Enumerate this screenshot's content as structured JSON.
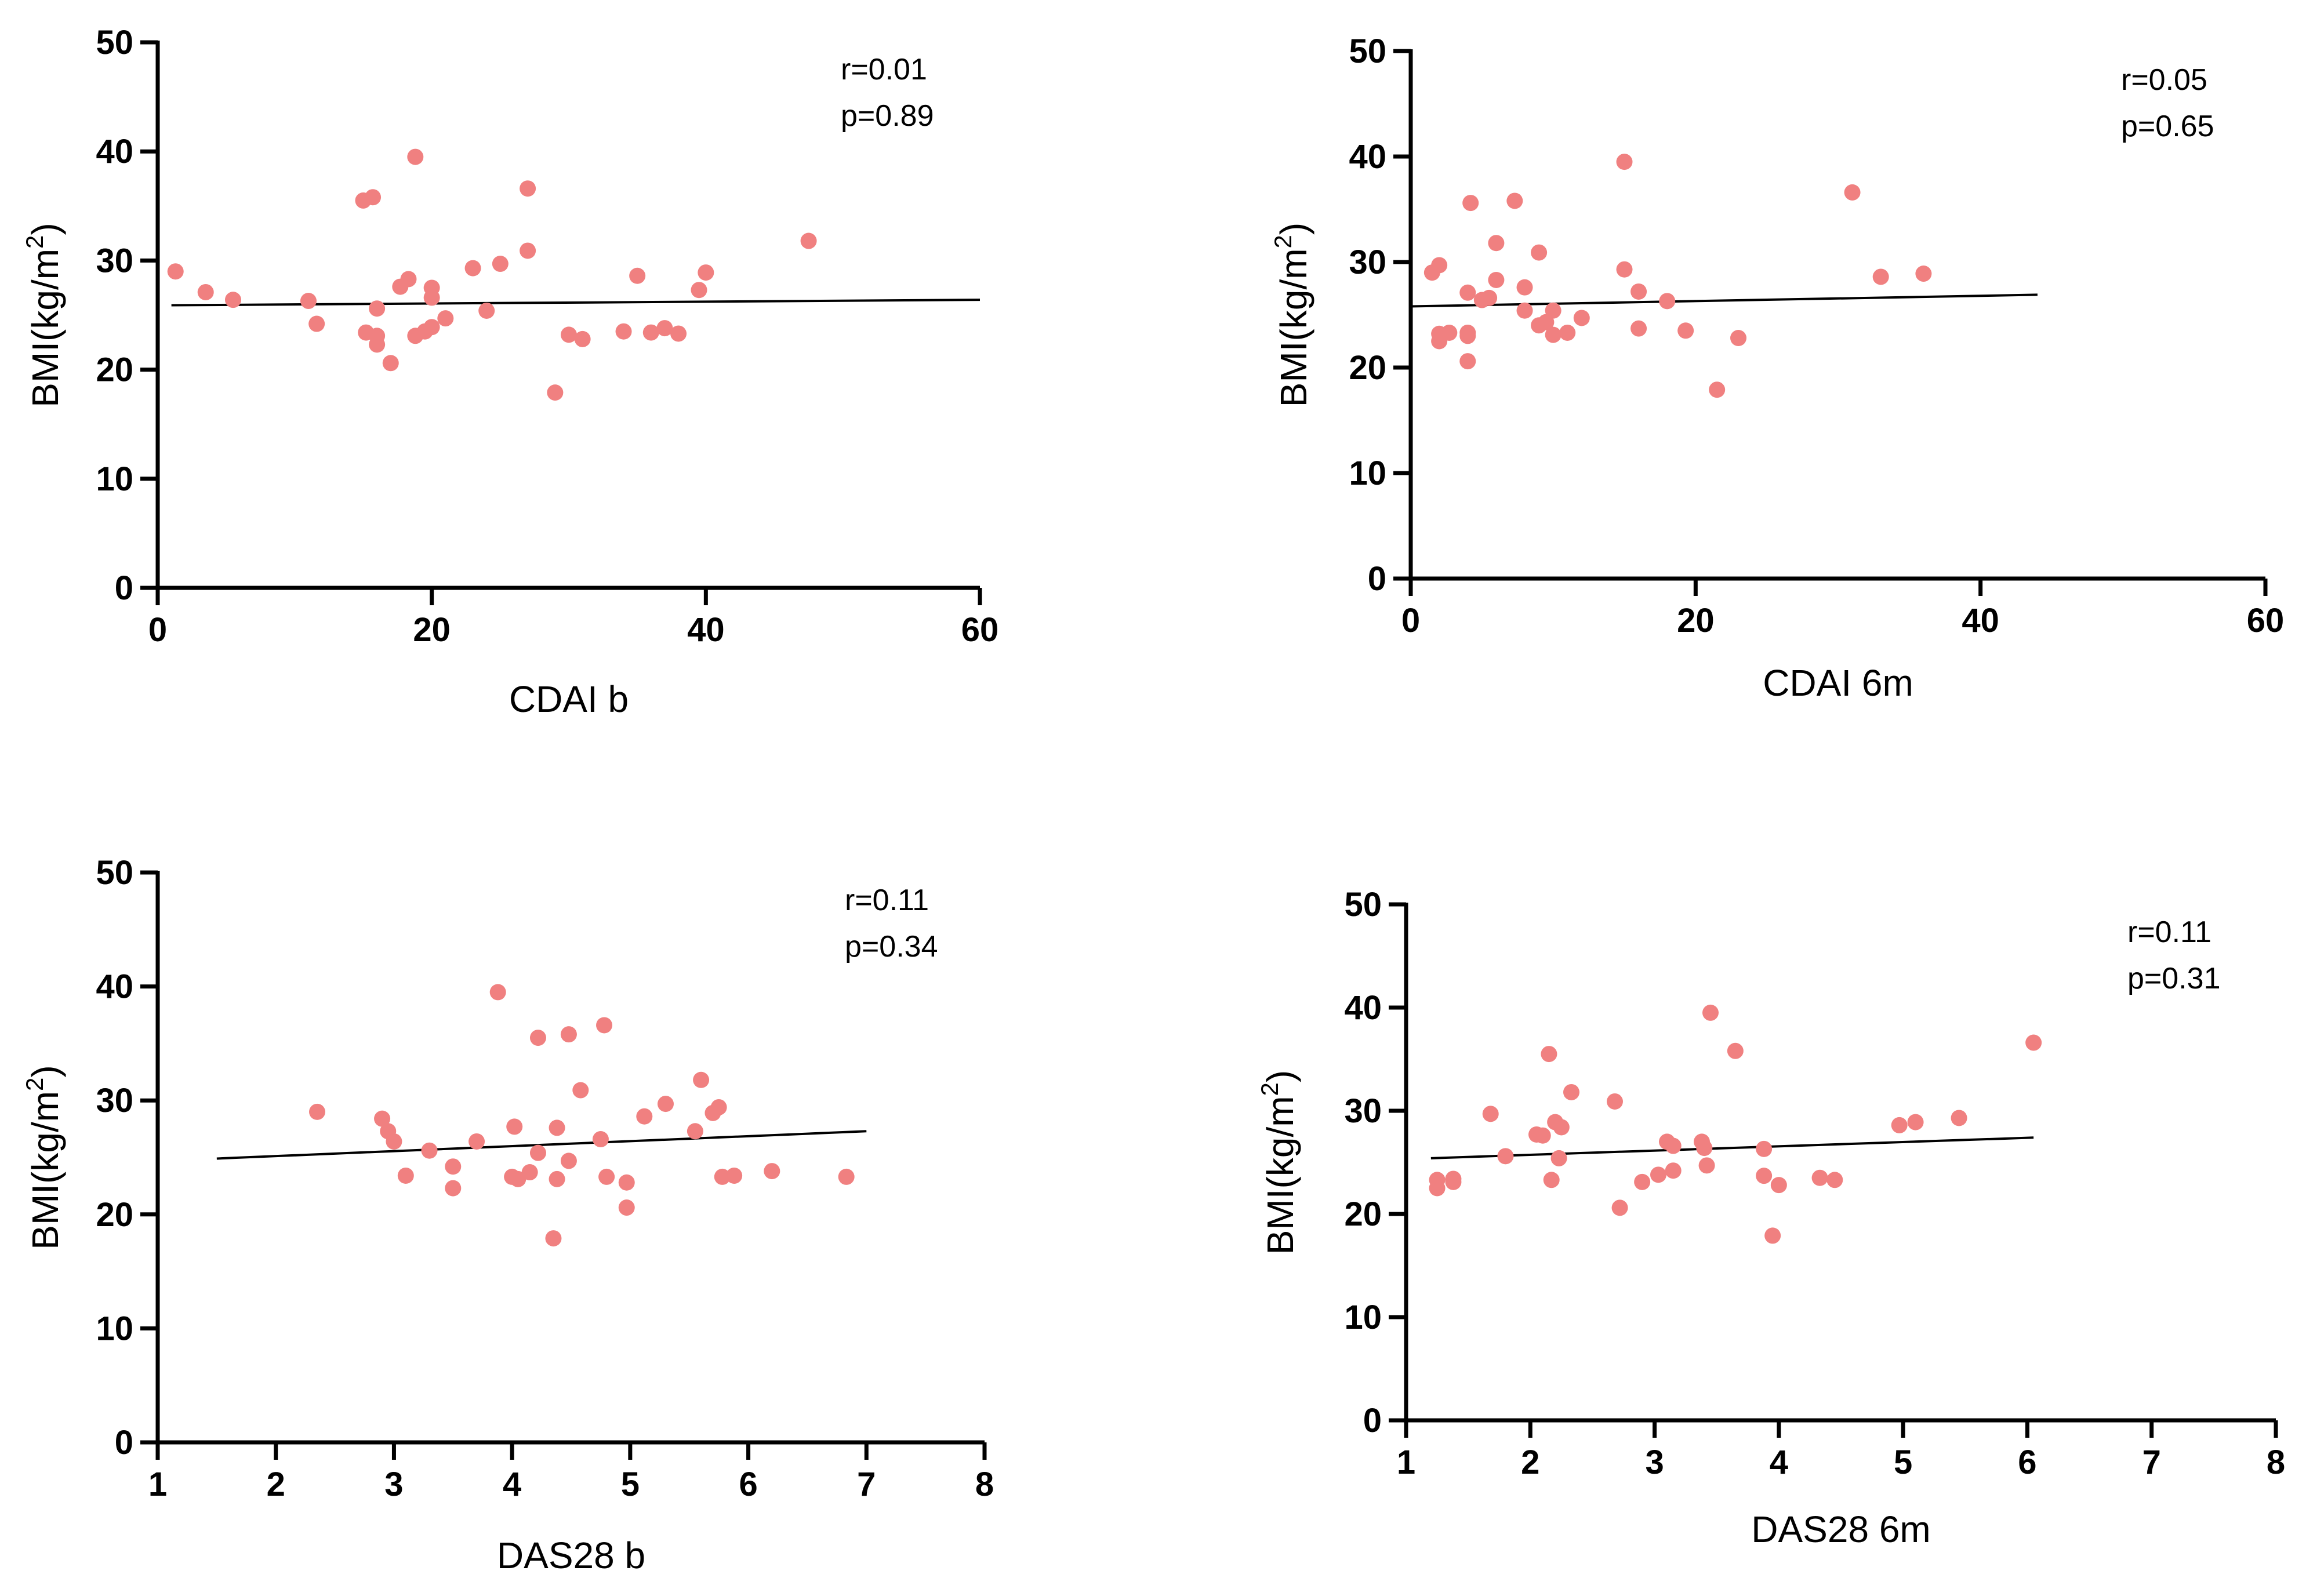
{
  "colors": {
    "point": "#f08080",
    "axis": "#000000",
    "fit_line": "#000000"
  },
  "chart_data": [
    {
      "type": "scatter",
      "panel": "top-left",
      "xlabel": "CDAI b",
      "ylabel_main": "BMI(kg/m",
      "ylabel_sup": "2",
      "ylabel_close": ")",
      "xlim": [
        0,
        60
      ],
      "ylim": [
        0,
        50
      ],
      "xticks": [
        0,
        20,
        40,
        60
      ],
      "yticks": [
        0,
        10,
        20,
        30,
        40,
        50
      ],
      "annotations": [
        "r=0.01",
        "p=0.89"
      ],
      "fit_line": {
        "x": [
          1,
          60
        ],
        "y": [
          25.9,
          26.4
        ]
      },
      "points": [
        [
          1.3,
          29.0
        ],
        [
          3.5,
          27.1
        ],
        [
          5.5,
          26.4
        ],
        [
          11,
          26.3
        ],
        [
          11.6,
          24.2
        ],
        [
          15,
          35.5
        ],
        [
          15.7,
          35.8
        ],
        [
          15.2,
          23.4
        ],
        [
          16,
          25.6
        ],
        [
          16,
          23.1
        ],
        [
          16,
          22.3
        ],
        [
          17,
          20.6
        ],
        [
          17.7,
          27.6
        ],
        [
          18.3,
          28.3
        ],
        [
          18.8,
          39.5
        ],
        [
          18.8,
          23.1
        ],
        [
          19.5,
          23.5
        ],
        [
          20,
          27.5
        ],
        [
          20,
          26.6
        ],
        [
          20,
          23.9
        ],
        [
          21,
          24.7
        ],
        [
          23,
          29.3
        ],
        [
          24,
          25.4
        ],
        [
          25,
          29.7
        ],
        [
          27,
          36.6
        ],
        [
          27,
          30.9
        ],
        [
          29,
          17.9
        ],
        [
          30,
          23.2
        ],
        [
          31,
          22.8
        ],
        [
          34,
          23.5
        ],
        [
          35,
          28.6
        ],
        [
          36,
          23.4
        ],
        [
          37,
          23.8
        ],
        [
          38,
          23.3
        ],
        [
          39.5,
          27.3
        ],
        [
          40,
          28.9
        ],
        [
          47.5,
          31.8
        ]
      ]
    },
    {
      "type": "scatter",
      "panel": "top-right",
      "xlabel": "CDAI 6m",
      "ylabel_main": "BMI(kg/m",
      "ylabel_sup": "2",
      "ylabel_close": ")",
      "xlim": [
        0,
        60
      ],
      "ylim": [
        0,
        50
      ],
      "xticks": [
        0,
        20,
        40,
        60
      ],
      "yticks": [
        0,
        10,
        20,
        30,
        40,
        50
      ],
      "annotations": [
        "r=0.05",
        "p=0.65"
      ],
      "fit_line": {
        "x": [
          0,
          44
        ],
        "y": [
          25.8,
          26.9
        ]
      },
      "points": [
        [
          1.5,
          29.0
        ],
        [
          2,
          29.7
        ],
        [
          2,
          23.2
        ],
        [
          2,
          22.5
        ],
        [
          2.7,
          23.3
        ],
        [
          4,
          27.1
        ],
        [
          4,
          23.3
        ],
        [
          4,
          23.0
        ],
        [
          4,
          20.6
        ],
        [
          4.2,
          35.6
        ],
        [
          5,
          26.4
        ],
        [
          5.5,
          26.6
        ],
        [
          6,
          31.8
        ],
        [
          6,
          28.3
        ],
        [
          7.3,
          35.8
        ],
        [
          8,
          27.6
        ],
        [
          8,
          25.4
        ],
        [
          9,
          30.9
        ],
        [
          9,
          24.0
        ],
        [
          9.5,
          24.3
        ],
        [
          10,
          25.4
        ],
        [
          10,
          23.1
        ],
        [
          11,
          23.3
        ],
        [
          12,
          24.7
        ],
        [
          15,
          39.5
        ],
        [
          15,
          29.3
        ],
        [
          16,
          27.2
        ],
        [
          16,
          23.7
        ],
        [
          18,
          26.3
        ],
        [
          19.3,
          23.5
        ],
        [
          21.5,
          17.9
        ],
        [
          23,
          22.8
        ],
        [
          31,
          36.6
        ],
        [
          33,
          28.6
        ],
        [
          36,
          28.9
        ]
      ]
    },
    {
      "type": "scatter",
      "panel": "bottom-left",
      "xlabel": "DAS28 b",
      "ylabel_main": "BMI(kg/m",
      "ylabel_sup": "2",
      "ylabel_close": ")",
      "xlim": [
        1,
        8
      ],
      "ylim": [
        0,
        50
      ],
      "xticks": [
        1,
        2,
        3,
        4,
        5,
        6,
        7,
        8
      ],
      "yticks": [
        0,
        10,
        20,
        30,
        40,
        50
      ],
      "annotations": [
        "r=0.11",
        "p=0.34"
      ],
      "fit_line": {
        "x": [
          1.5,
          7
        ],
        "y": [
          24.9,
          27.3
        ]
      },
      "points": [
        [
          2.35,
          29.0
        ],
        [
          2.9,
          28.4
        ],
        [
          2.95,
          27.3
        ],
        [
          3.0,
          26.4
        ],
        [
          3.1,
          23.4
        ],
        [
          3.3,
          25.6
        ],
        [
          3.5,
          24.2
        ],
        [
          3.5,
          22.3
        ],
        [
          3.7,
          26.4
        ],
        [
          3.88,
          39.5
        ],
        [
          4.0,
          23.3
        ],
        [
          4.02,
          27.7
        ],
        [
          4.05,
          23.1
        ],
        [
          4.15,
          23.7
        ],
        [
          4.22,
          35.5
        ],
        [
          4.22,
          25.4
        ],
        [
          4.35,
          17.9
        ],
        [
          4.38,
          27.6
        ],
        [
          4.38,
          23.1
        ],
        [
          4.48,
          35.8
        ],
        [
          4.48,
          24.7
        ],
        [
          4.58,
          30.9
        ],
        [
          4.75,
          26.6
        ],
        [
          4.78,
          36.6
        ],
        [
          4.8,
          23.3
        ],
        [
          4.97,
          22.8
        ],
        [
          4.97,
          20.6
        ],
        [
          5.12,
          28.6
        ],
        [
          5.3,
          29.7
        ],
        [
          5.55,
          27.3
        ],
        [
          5.6,
          31.8
        ],
        [
          5.7,
          28.9
        ],
        [
          5.75,
          29.4
        ],
        [
          5.78,
          23.3
        ],
        [
          5.88,
          23.4
        ],
        [
          6.2,
          23.8
        ],
        [
          6.83,
          23.3
        ]
      ]
    },
    {
      "type": "scatter",
      "panel": "bottom-right",
      "xlabel": "DAS28 6m",
      "ylabel_main": "BMI(kg/m",
      "ylabel_sup": "2",
      "ylabel_close": ")",
      "xlim": [
        1,
        8
      ],
      "ylim": [
        0,
        50
      ],
      "xticks": [
        1,
        2,
        3,
        4,
        5,
        6,
        7,
        8
      ],
      "yticks": [
        0,
        10,
        20,
        30,
        40,
        50
      ],
      "annotations": [
        "r=0.11",
        "p=0.31"
      ],
      "fit_line": {
        "x": [
          1.2,
          6.05
        ],
        "y": [
          25.4,
          27.4
        ]
      },
      "points": [
        [
          1.25,
          23.3
        ],
        [
          1.25,
          22.5
        ],
        [
          1.38,
          23.4
        ],
        [
          1.38,
          23.1
        ],
        [
          1.68,
          29.7
        ],
        [
          1.8,
          25.6
        ],
        [
          2.05,
          27.7
        ],
        [
          2.1,
          27.6
        ],
        [
          2.15,
          35.5
        ],
        [
          2.17,
          23.3
        ],
        [
          2.2,
          28.9
        ],
        [
          2.23,
          25.4
        ],
        [
          2.25,
          28.4
        ],
        [
          2.33,
          31.8
        ],
        [
          2.68,
          30.9
        ],
        [
          2.72,
          20.6
        ],
        [
          2.9,
          23.1
        ],
        [
          3.03,
          23.8
        ],
        [
          3.1,
          27.0
        ],
        [
          3.15,
          26.6
        ],
        [
          3.15,
          24.2
        ],
        [
          3.38,
          27.0
        ],
        [
          3.4,
          26.4
        ],
        [
          3.42,
          24.7
        ],
        [
          3.45,
          39.5
        ],
        [
          3.65,
          35.8
        ],
        [
          3.88,
          26.3
        ],
        [
          3.88,
          23.7
        ],
        [
          3.95,
          17.9
        ],
        [
          4.0,
          22.8
        ],
        [
          4.33,
          23.5
        ],
        [
          4.45,
          23.3
        ],
        [
          4.97,
          28.6
        ],
        [
          5.1,
          28.9
        ],
        [
          5.45,
          29.3
        ],
        [
          6.05,
          36.6
        ]
      ]
    }
  ]
}
